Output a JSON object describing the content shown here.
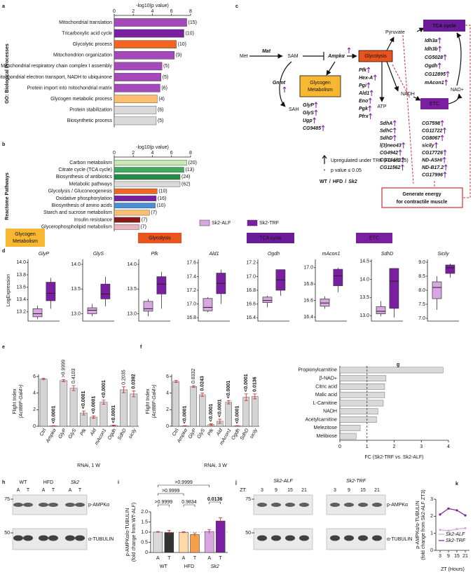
{
  "panel_labels": [
    "a",
    "b",
    "c",
    "d",
    "e",
    "f",
    "g",
    "h",
    "i",
    "j",
    "k"
  ],
  "chart_data": [
    {
      "type": "hbar-top",
      "ylabel": "GO: Biological Processes",
      "xlabel": "-log10(p value)",
      "xlim": [
        0,
        8
      ],
      "xticks": [
        0,
        2,
        4,
        6,
        8
      ],
      "categories": [
        "Mitochondrial translation",
        "Tricarboxylic acid cycle",
        "Glycolytic process",
        "Mitochondrion organization",
        "Mitochondrial respiratory chain complex I assembly",
        "Mitochondrial electron transport, NADH to ubiquinone",
        "Protein import into mitochondrial matrix",
        "Glycogen metabolic process",
        "Protein stabilization",
        "Biosynthetic process"
      ],
      "values": [
        7.6,
        7.3,
        6.5,
        6.3,
        5.0,
        4.9,
        4.8,
        4.5,
        4.4,
        4.4
      ],
      "annotations": [
        "(15)",
        "(10)",
        "(10)",
        "(9)",
        "(5)",
        "(5)",
        "(6)",
        "(4)",
        "(6)",
        "(5)"
      ],
      "colors": [
        "#a349b9",
        "#7b1fa2",
        "#f26522",
        "#a349b9",
        "#a349b9",
        "#a349b9",
        "#a349b9",
        "#fdbf6f",
        "#d9d9d9",
        "#d9d9d9"
      ]
    },
    {
      "type": "hbar-top",
      "ylabel": "Reactome Pathways",
      "xlabel": "-log10(p value)",
      "xlim": [
        0,
        8
      ],
      "xticks": [
        0,
        2,
        4,
        6,
        8
      ],
      "categories": [
        "Carbon metabolism",
        "Citrate cycle (TCA cycle)",
        "Biosynthesis of antibiotics",
        "Metabolic pathways",
        "Glycolysis / Gluconeogenesis",
        "Oxidative phosphorylation",
        "Biosynthesis of amino acids",
        "Starch and sucrose metabolism",
        "Insulin resistance",
        "Glycerophospholipid metabolism"
      ],
      "values": [
        7.6,
        7.3,
        6.9,
        6.9,
        4.5,
        4.4,
        4.3,
        3.7,
        2.7,
        2.6
      ],
      "annotations": [
        "(20)",
        "(13)",
        "(24)",
        "(62)",
        "(10)",
        "(16)",
        "(10)",
        "(7)",
        "(7)",
        "(7)"
      ],
      "colors": [
        "#c7e9b4",
        "#41ab5d",
        "#238b45",
        "#d9d9d9",
        "#f26522",
        "#7b1fa2",
        "#4a90d9",
        "#fdbf6f",
        "#8b1a1a",
        "#e8b4c0"
      ]
    },
    {
      "type": "box",
      "title": "GlyP",
      "ylim": [
        13.05,
        14.05
      ],
      "yticks": [
        13.2,
        13.4,
        13.6,
        13.8,
        {
          "value": 14,
          "label": "14.0"
        }
      ],
      "boxes": [
        {
          "min": 13.08,
          "q1": 13.12,
          "median": 13.17,
          "q3": 13.25,
          "max": 13.3
        },
        {
          "min": 13.25,
          "q1": 13.38,
          "median": 13.5,
          "q3": 13.68,
          "max": 13.75
        }
      ]
    },
    {
      "type": "box",
      "title": "GlyS",
      "ylim": [
        12.85,
        14.1
      ],
      "yticks": [
        {
          "value": 13,
          "label": "13.0"
        },
        13.5,
        {
          "value": 14,
          "label": "14.0"
        }
      ],
      "boxes": [
        {
          "min": 12.95,
          "q1": 13.0,
          "median": 13.07,
          "q3": 13.12,
          "max": 13.2
        },
        {
          "min": 13.15,
          "q1": 13.3,
          "median": 13.4,
          "q3": 13.6,
          "max": 13.75
        }
      ]
    },
    {
      "type": "box",
      "title": "Pfk",
      "ylim": [
        12.85,
        14.1
      ],
      "yticks": [
        {
          "value": 13,
          "label": "13.0"
        },
        13.5,
        {
          "value": 14,
          "label": "14.0"
        }
      ],
      "boxes": [
        {
          "min": 12.95,
          "q1": 13.05,
          "median": 13.1,
          "q3": 13.25,
          "max": 13.3
        },
        {
          "min": 13.1,
          "q1": 13.4,
          "median": 13.6,
          "q3": 13.75,
          "max": 13.85
        }
      ]
    },
    {
      "type": "box",
      "title": "Ald1",
      "ylim": [
        16.75,
        17.65
      ],
      "yticks": [
        16.8,
        {
          "value": 17,
          "label": "17.0"
        },
        17.2,
        17.4,
        17.6
      ],
      "boxes": [
        {
          "min": 16.88,
          "q1": 16.9,
          "median": 16.95,
          "q3": 17.08,
          "max": 17.1
        },
        {
          "min": 17.0,
          "q1": 17.15,
          "median": 17.3,
          "q3": 17.45,
          "max": 17.5
        }
      ]
    },
    {
      "type": "box",
      "title": "Ogdh",
      "ylim": [
        16.35,
        17.25
      ],
      "yticks": [
        16.4,
        16.6,
        16.8,
        {
          "value": 17,
          "label": "17.0"
        },
        17.2
      ],
      "boxes": [
        {
          "min": 16.55,
          "q1": 16.62,
          "median": 16.65,
          "q3": 16.7,
          "max": 16.72
        },
        {
          "min": 16.72,
          "q1": 16.8,
          "median": 16.95,
          "q3": 17.1,
          "max": 17.1
        }
      ]
    },
    {
      "type": "box",
      "title": "mAcon1",
      "ylim": [
        16.35,
        17.1
      ],
      "yticks": [
        16.4,
        16.6,
        16.8,
        {
          "value": 17,
          "label": "17.0"
        }
      ],
      "boxes": [
        {
          "min": 16.5,
          "q1": 16.53,
          "median": 16.57,
          "q3": 16.62,
          "max": 16.65
        },
        {
          "min": 16.7,
          "q1": 16.78,
          "median": 16.9,
          "q3": 16.98,
          "max": 17.0
        }
      ]
    },
    {
      "type": "box",
      "title": "SdhD",
      "ylim": [
        12.85,
        14.55
      ],
      "yticks": [
        {
          "value": 13,
          "label": "13.0"
        },
        13.5,
        {
          "value": 14,
          "label": "14.0"
        },
        14.5
      ],
      "boxes": [
        {
          "min": 12.98,
          "q1": 13.05,
          "median": 13.12,
          "q3": 13.25,
          "max": 13.4
        },
        {
          "min": 12.95,
          "q1": 13.2,
          "median": 13.95,
          "q3": 14.3,
          "max": 14.3
        }
      ]
    },
    {
      "type": "box",
      "title": "Sicily",
      "ylim": [
        6.9,
        9.1
      ],
      "yticks": [
        {
          "value": 7,
          "label": "7.0"
        },
        7.5,
        {
          "value": 8,
          "label": "8.0"
        },
        8.5,
        {
          "value": 9,
          "label": "9.0"
        }
      ],
      "boxes": [
        {
          "min": 7.3,
          "q1": 7.7,
          "median": 8.1,
          "q3": 8.3,
          "max": 8.5
        },
        {
          "min": 8.45,
          "q1": 8.6,
          "median": 8.8,
          "q3": 8.9,
          "max": 8.95
        }
      ]
    },
    {
      "type": "bar",
      "ylabel": [
        "Flight Index",
        "(Act88F-Gal4>)"
      ],
      "xlabel": "RNAi, 1 W",
      "ylim": [
        0,
        6
      ],
      "yticks": [
        0,
        2,
        4,
        6
      ],
      "color": "#d4d4d4",
      "categories": [
        "Ctrl",
        "Ampkα",
        "GlyP",
        "GlyS",
        "Pfk",
        "Ald",
        "mAcon1",
        "Ogdh",
        "SdhD",
        "sicily"
      ],
      "values": [
        5.7,
        0.05,
        5.5,
        4.6,
        1.6,
        1.1,
        2.9,
        0.1,
        4.4,
        3.9
      ],
      "errors": [
        0.1,
        0.02,
        0.12,
        0.3,
        0.25,
        0.15,
        0.25,
        0.03,
        0.35,
        0.35
      ],
      "p_labels": [
        null,
        "<0.0001",
        ">0.9999",
        "0.4103",
        "<0.0001",
        "<0.0001",
        "<0.0001",
        "<0.0001",
        "0.2035",
        "0.0392"
      ]
    },
    {
      "type": "bar",
      "ylabel": [
        "Flight Index",
        "(Act88F-Gal4>)"
      ],
      "xlabel": "RNAi, 3 W",
      "ylim": [
        0,
        6
      ],
      "yticks": [
        0,
        2,
        4,
        6
      ],
      "color": "#d4d4d4",
      "categories": [
        "Ctrl",
        "Ampkα",
        "GlyP",
        "GlyS",
        "Pfk",
        "Ald",
        "mAcon1",
        "Ogdh",
        "SdhD",
        "sicily"
      ],
      "values": [
        5.4,
        0.05,
        4.8,
        3.8,
        0.2,
        0.6,
        2.9,
        0.05,
        3.5,
        3.6
      ],
      "errors": [
        0.12,
        0.02,
        0.1,
        0.2,
        0.1,
        0.25,
        0.2,
        0.02,
        0.4,
        0.3
      ],
      "p_labels": [
        null,
        "<0.0001",
        "0.8332",
        "0.0243",
        "<0.0001",
        "<0.0001",
        "<0.0001",
        "<0.0001",
        "<0.0001",
        "0.0136"
      ]
    },
    {
      "type": "hbar",
      "xlabel": "FC (Sk2-TRF vs. Sk2-ALF)",
      "xlim": [
        0,
        4
      ],
      "xticks": [
        0,
        1,
        2,
        3,
        4
      ],
      "refline": 1,
      "color": "#d9d9d9",
      "categories": [
        "Propionylcarnitine",
        "β-NAD+",
        "Citric acid",
        "Malic acid",
        "L-Carnitine",
        "NADH",
        "Acetylcarnitine",
        "Melezitose",
        "Melibiose"
      ],
      "values": [
        3.8,
        1.7,
        1.65,
        1.65,
        1.6,
        1.4,
        1.35,
        0.75,
        0.6
      ]
    },
    {
      "type": "grouped-bar",
      "ylabel": [
        "p-AMPKα/α-TUBULIN",
        "(fold change from WT-ALF)"
      ],
      "ylim": [
        0,
        2
      ],
      "yticks": [
        0,
        0.5,
        {
          "value": 1,
          "label": "1.0"
        },
        1.5,
        {
          "value": 2,
          "label": "2.0"
        }
      ],
      "categories": [
        "A",
        "T",
        "A",
        "T",
        "A",
        "T"
      ],
      "groups": [
        "WT",
        "HFD",
        "Sk2"
      ],
      "values": [
        1.0,
        0.98,
        0.98,
        0.88,
        1.03,
        1.55
      ],
      "errors": [
        0.03,
        0.1,
        0.04,
        0.08,
        0.1,
        0.15
      ],
      "colors": [
        "#d9d9d9",
        "#333333",
        "#fdd9a8",
        "#f7a04b",
        "#d8a6e0",
        "#7b1fa2"
      ],
      "comparisons": [
        ">0.9999",
        ">0.9999",
        ">0.9999",
        "0.9834",
        "0.0136"
      ]
    },
    {
      "type": "line",
      "ylabel": [
        "p-AMPKα/α-TUBULIN",
        "(fold change from Sk2-ALF ZT3)"
      ],
      "xlabel": "ZT (Hours)",
      "x": [
        3,
        9,
        15,
        21
      ],
      "xlim": [
        0,
        24
      ],
      "xticks": [
        3,
        9,
        15,
        21
      ],
      "ylim": [
        0,
        3
      ],
      "yticks": [
        0,
        1,
        2,
        3
      ],
      "series": [
        {
          "name": "Sk2-ALF",
          "color": "#d8a6e0",
          "values": [
            1.2,
            1.15,
            1.25,
            1.3
          ]
        },
        {
          "name": "Sk2-TRF",
          "color": "#7b1fa2",
          "values": [
            2.1,
            2.45,
            2.35,
            2.05
          ]
        }
      ]
    }
  ],
  "d_legend": {
    "ylabel": "LogExpression",
    "series": [
      {
        "name": "Sk2-ALF",
        "color": "#d8a6e0"
      },
      {
        "name": "Sk2-TRF",
        "color": "#7b1fa2"
      }
    ],
    "headers": [
      {
        "label": [
          "Glycogen",
          "Metabolism"
        ],
        "color": "#f7b733"
      },
      {
        "label": [
          "Glycolysis"
        ],
        "color": "#e8541c"
      },
      {
        "label": [
          "TCA cycle"
        ],
        "color": "#6a1b9a"
      },
      {
        "label": [
          "ETC"
        ],
        "color": "#7b1fa2"
      }
    ]
  },
  "pathway_diagram": {
    "met": "Met",
    "mat": "Mat",
    "sam": "SAM",
    "sah": "SAH",
    "gnmt": "Gnmt",
    "ampk": "Ampkα",
    "glycolysis": "Glycolysis",
    "pyruvate": "Pyruvate",
    "tca": "TCA cycle",
    "nadh": "NADH",
    "atp": "ATP",
    "etc": "ETC",
    "nad": "NAD+",
    "glycogen": [
      "Glycogen",
      "Metabolism"
    ],
    "energy": [
      "Generate energy",
      "for contractile muscle"
    ],
    "glycolysis_genes": [
      "Pfk",
      "Hex-A",
      "Pgi",
      "Ald1",
      "Eno",
      "Pgk",
      "Pfrx"
    ],
    "glycogen_genes": [
      "GlyP",
      "GlyS",
      "Ugp",
      "CG9485"
    ],
    "tca_genes": [
      "Idh3a",
      "Idh3b",
      "CG5028",
      "Ogdh",
      "CG12895",
      "mAcon1"
    ],
    "etc_genes_1": [
      "SdhA",
      "SdhC",
      "SdhD",
      "l(3)neo43",
      "CG4942",
      "CG14483",
      "CG11562"
    ],
    "etc_genes_2": [
      "CG7598",
      "CG11722",
      "CG8067",
      "sicily",
      "CG17726",
      "ND-ASHI",
      "ND-B17.2",
      "CG17996"
    ],
    "legend": {
      "upregulated": "Upregulated under TRF (FC ≥ 1.25)",
      "star": "*",
      "pvalue": "p value ≤ 0.05",
      "groups": [
        "WT",
        "HFD",
        "Sk2"
      ],
      "separator": "/"
    }
  },
  "blot_h": {
    "groups": [
      "WT",
      "HFD",
      "Sk2"
    ],
    "lanes": [
      "A",
      "T",
      "A",
      "T",
      "A",
      "T"
    ],
    "markers": [
      75,
      50
    ],
    "bands": [
      "p-AMPKα",
      "α-TUBULIN"
    ]
  },
  "blot_j": {
    "zt_label": "ZT:",
    "groups": [
      "Sk2-ALF",
      "Sk2-TRF"
    ],
    "lanes": [
      3,
      9,
      15,
      21,
      3,
      9,
      15,
      21
    ],
    "markers": [
      75,
      50
    ],
    "bands": [
      "p-AMPKα",
      "α-TUBULIN"
    ]
  }
}
